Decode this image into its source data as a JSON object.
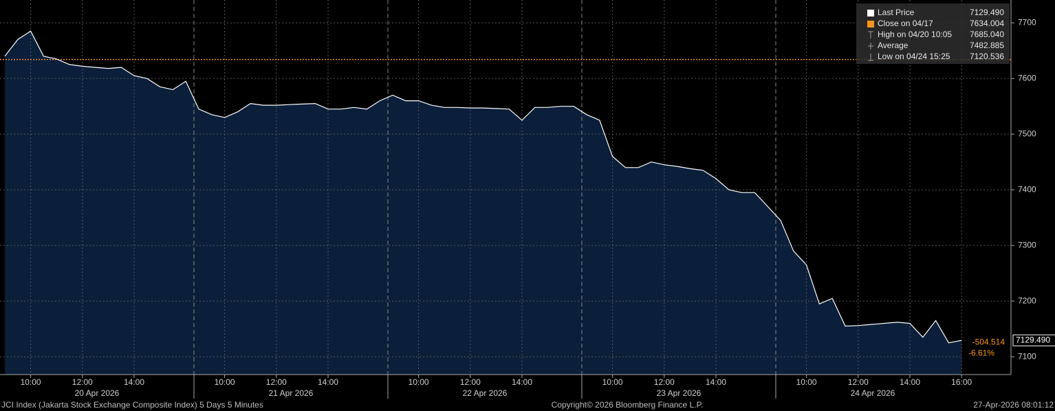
{
  "chart_data": {
    "type": "area",
    "ylim": [
      7068,
      7741
    ],
    "yticks": [
      7100,
      7200,
      7300,
      7400,
      7500,
      7600,
      7700
    ],
    "grid": true,
    "line_color": "#ffffff",
    "fill_color": "#0b1f3a",
    "accent_color": "#f7941d",
    "days": [
      {
        "label": "20 Apr 2026",
        "times": [
          null,
          null,
          "10:00",
          null,
          null,
          null,
          "12:00",
          null,
          null,
          null,
          "14:00",
          null,
          null,
          null,
          null
        ],
        "values": [
          7640,
          7670,
          7685,
          7640,
          7635,
          7625,
          7622,
          7620,
          7618,
          7620,
          7605,
          7600,
          7585,
          7580,
          7595
        ]
      },
      {
        "label": "21 Apr 2026",
        "times": [
          null,
          null,
          "10:00",
          null,
          null,
          null,
          "12:00",
          null,
          null,
          null,
          "14:00",
          null,
          null,
          null,
          null
        ],
        "values": [
          7545,
          7535,
          7530,
          7540,
          7555,
          7552,
          7552,
          7553,
          7554,
          7555,
          7545,
          7545,
          7548,
          7545,
          7560
        ]
      },
      {
        "label": "22 Apr 2026",
        "times": [
          null,
          null,
          "10:00",
          null,
          null,
          null,
          "12:00",
          null,
          null,
          null,
          "14:00",
          null,
          null,
          null,
          null
        ],
        "values": [
          7570,
          7560,
          7560,
          7552,
          7548,
          7548,
          7547,
          7547,
          7546,
          7545,
          7525,
          7548,
          7548,
          7550,
          7550
        ]
      },
      {
        "label": "23 Apr 2026",
        "times": [
          null,
          null,
          "10:00",
          null,
          null,
          null,
          "12:00",
          null,
          null,
          null,
          "14:00",
          null,
          null,
          null,
          null
        ],
        "values": [
          7535,
          7525,
          7460,
          7440,
          7440,
          7450,
          7445,
          7442,
          7438,
          7435,
          7420,
          7400,
          7395,
          7395,
          7370
        ]
      },
      {
        "label": "24 Apr 2026",
        "times": [
          null,
          null,
          "10:00",
          null,
          null,
          null,
          "12:00",
          null,
          null,
          null,
          "14:00",
          null,
          null,
          null,
          "16:00"
        ],
        "values": [
          7345,
          7290,
          7265,
          7195,
          7205,
          7155,
          7156,
          7158,
          7160,
          7162,
          7160,
          7135,
          7165,
          7125,
          7129.49
        ]
      }
    ],
    "legend": [
      {
        "name": "Last Price",
        "value": {
          "value": 7129.49,
          "label": "7129.490"
        }
      },
      {
        "name": "Close on 04/17",
        "value": {
          "value": 7634.004,
          "label": "7634.004"
        }
      },
      {
        "name": "High on 04/20 10:05",
        "value": {
          "value": 7685.04,
          "label": "7685.040"
        }
      },
      {
        "name": "Average",
        "value": 7482.885
      },
      {
        "name": "Low on 04/24 15:25",
        "value": 7120.536
      }
    ],
    "change": -504.514,
    "change_pct": {
      "value": -6.61,
      "label": "-6.61%"
    }
  },
  "footer": {
    "left": "JCI Index (Jakarta Stock Exchange Composite Index) 5 Days 5 Minutes",
    "center": "Copyright© 2026 Bloomberg Finance L.P.",
    "right": "27-Apr-2026 08:01:12"
  }
}
